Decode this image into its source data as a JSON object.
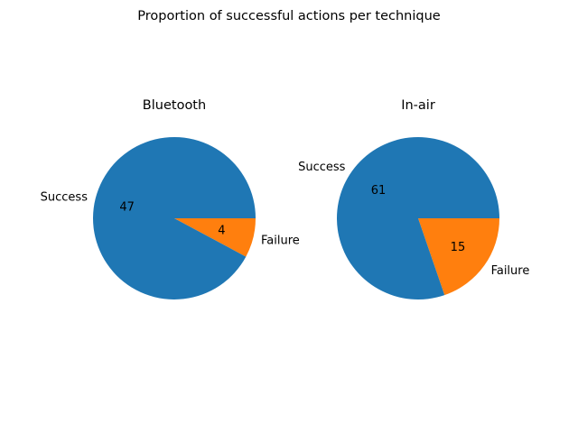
{
  "figure": {
    "title": "Proportion of successful actions per technique"
  },
  "chart_data": [
    {
      "type": "pie",
      "title": "Bluetooth",
      "labels": [
        "Failure",
        "Success"
      ],
      "values": [
        4,
        47
      ],
      "data_labels": [
        "4",
        "47"
      ],
      "colors": [
        "#ff7f0e",
        "#1f77b4"
      ],
      "start_angle": 0,
      "direction": "clockwise"
    },
    {
      "type": "pie",
      "title": "In-air",
      "labels": [
        "Failure",
        "Success"
      ],
      "values": [
        15,
        61
      ],
      "data_labels": [
        "15",
        "61"
      ],
      "colors": [
        "#ff7f0e",
        "#1f77b4"
      ],
      "start_angle": 0,
      "direction": "clockwise"
    }
  ]
}
